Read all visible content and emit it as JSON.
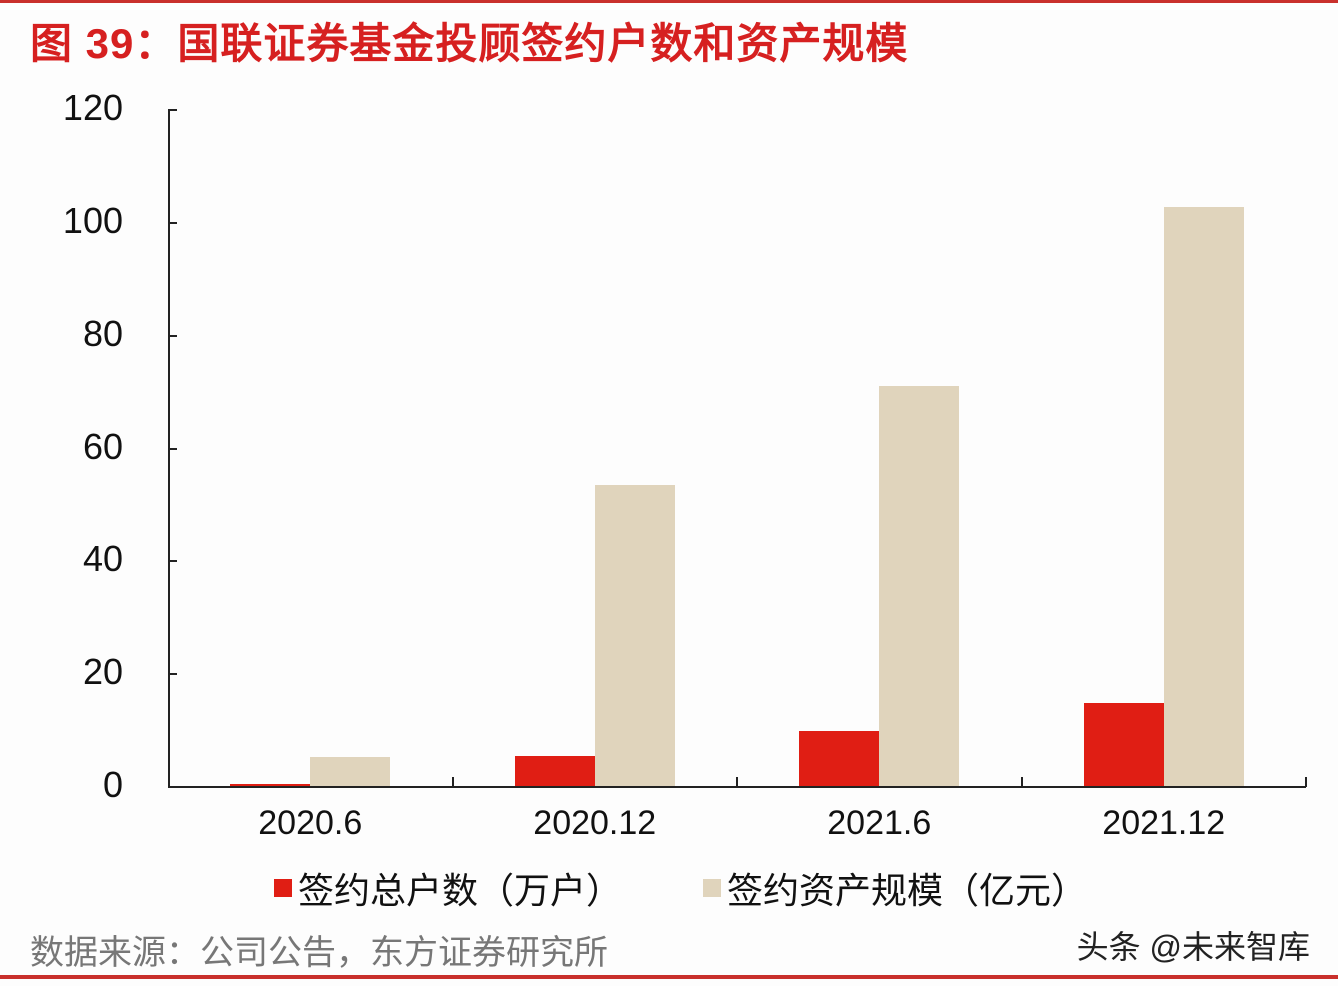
{
  "header": {
    "title": "图 39：国联证券基金投顾签约户数和资产规模"
  },
  "legend": {
    "items": [
      {
        "label": "签约总户数（万户）",
        "color": "#e01e14"
      },
      {
        "label": "签约资产规模（亿元）",
        "color": "#e0d4bc"
      }
    ]
  },
  "footer": {
    "source": "数据来源：公司公告，东方证券研究所",
    "watermark": "头条 @未来智库"
  },
  "colors": {
    "accent": "#d62020",
    "series1": "#e01e14",
    "series2": "#e0d4bc",
    "axis": "#222222"
  },
  "chart_data": {
    "type": "bar",
    "title": "图 39：国联证券基金投顾签约户数和资产规模",
    "xlabel": "",
    "ylabel": "",
    "categories": [
      "2020.6",
      "2020.12",
      "2021.6",
      "2021.12"
    ],
    "series": [
      {
        "name": "签约总户数（万户）",
        "color": "#e01e14",
        "values": [
          0.3,
          5.3,
          9.8,
          14.8
        ]
      },
      {
        "name": "签约资产规模（亿元）",
        "color": "#e0d4bc",
        "values": [
          5.2,
          53.4,
          70.9,
          102.6
        ]
      }
    ],
    "ylim": [
      0,
      120
    ],
    "yticks": [
      0,
      20,
      40,
      60,
      80,
      100,
      120
    ],
    "grid": false,
    "legend_position": "bottom"
  }
}
